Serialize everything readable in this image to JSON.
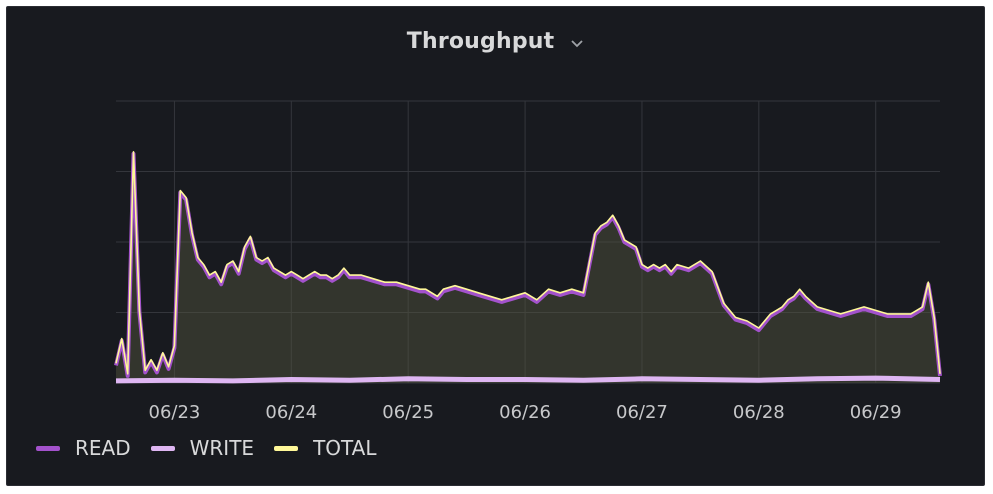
{
  "panel": {
    "title": "Throughput"
  },
  "chart_data": {
    "type": "line",
    "title": "Throughput",
    "xlabel": "",
    "ylabel": "",
    "x_ticks": [
      "06/23",
      "06/24",
      "06/25",
      "06/26",
      "06/27",
      "06/28",
      "06/29"
    ],
    "x_range": [
      "06/22 11:30",
      "06/29 12:30"
    ],
    "y_range": [
      0,
      4
    ],
    "y_tick_labels_shown": false,
    "grid": true,
    "legend": "bottom-left",
    "series": [
      {
        "name": "READ",
        "color": "#a352cc",
        "fill": true,
        "x": [
          -0.5,
          -0.45,
          -0.4,
          -0.35,
          -0.3,
          -0.25,
          -0.2,
          -0.15,
          -0.1,
          -0.05,
          0.0,
          0.05,
          0.1,
          0.15,
          0.2,
          0.25,
          0.3,
          0.35,
          0.4,
          0.45,
          0.5,
          0.55,
          0.6,
          0.65,
          0.7,
          0.75,
          0.8,
          0.85,
          0.9,
          0.95,
          1.0,
          1.05,
          1.1,
          1.15,
          1.2,
          1.25,
          1.3,
          1.35,
          1.4,
          1.45,
          1.5,
          1.6,
          1.7,
          1.8,
          1.9,
          2.0,
          2.1,
          2.15,
          2.2,
          2.25,
          2.3,
          2.4,
          2.5,
          2.6,
          2.7,
          2.8,
          2.9,
          3.0,
          3.1,
          3.2,
          3.3,
          3.4,
          3.5,
          3.6,
          3.65,
          3.7,
          3.75,
          3.8,
          3.85,
          3.9,
          3.95,
          4.0,
          4.05,
          4.1,
          4.15,
          4.2,
          4.25,
          4.3,
          4.4,
          4.5,
          4.6,
          4.7,
          4.8,
          4.9,
          5.0,
          5.1,
          5.15,
          5.2,
          5.25,
          5.3,
          5.35,
          5.4,
          5.5,
          5.6,
          5.7,
          5.8,
          5.9,
          6.0,
          6.1,
          6.2,
          6.3,
          6.4,
          6.45,
          6.5,
          6.55
        ],
        "values": [
          0.25,
          0.6,
          0.1,
          3.25,
          1.0,
          0.15,
          0.3,
          0.15,
          0.4,
          0.2,
          0.5,
          2.7,
          2.6,
          2.1,
          1.75,
          1.65,
          1.5,
          1.55,
          1.4,
          1.65,
          1.7,
          1.55,
          1.9,
          2.05,
          1.75,
          1.7,
          1.75,
          1.6,
          1.55,
          1.5,
          1.55,
          1.5,
          1.45,
          1.5,
          1.55,
          1.5,
          1.5,
          1.45,
          1.5,
          1.6,
          1.5,
          1.5,
          1.45,
          1.4,
          1.4,
          1.35,
          1.3,
          1.3,
          1.25,
          1.2,
          1.3,
          1.35,
          1.3,
          1.25,
          1.2,
          1.15,
          1.2,
          1.25,
          1.15,
          1.3,
          1.25,
          1.3,
          1.25,
          2.1,
          2.2,
          2.25,
          2.35,
          2.2,
          2.0,
          1.95,
          1.9,
          1.65,
          1.6,
          1.65,
          1.6,
          1.65,
          1.55,
          1.65,
          1.6,
          1.7,
          1.55,
          1.1,
          0.9,
          0.85,
          0.75,
          0.95,
          1.0,
          1.05,
          1.15,
          1.2,
          1.3,
          1.2,
          1.05,
          1.0,
          0.95,
          1.0,
          1.05,
          1.0,
          0.95,
          0.95,
          0.95,
          1.05,
          1.4,
          0.9,
          0.1
        ]
      },
      {
        "name": "WRITE",
        "color": "#deb6f2",
        "fill": false,
        "x": [
          -0.5,
          0.0,
          0.5,
          1.0,
          1.5,
          2.0,
          2.5,
          3.0,
          3.5,
          4.0,
          4.5,
          5.0,
          5.5,
          6.0,
          6.55
        ],
        "values": [
          0.03,
          0.04,
          0.03,
          0.05,
          0.04,
          0.06,
          0.05,
          0.05,
          0.04,
          0.06,
          0.05,
          0.04,
          0.06,
          0.07,
          0.05
        ]
      },
      {
        "name": "TOTAL",
        "color": "#fff899",
        "fill": false,
        "x": [
          -0.5,
          -0.45,
          -0.4,
          -0.35,
          -0.3,
          -0.25,
          -0.2,
          -0.15,
          -0.1,
          -0.05,
          0.0,
          0.05,
          0.1,
          0.15,
          0.2,
          0.25,
          0.3,
          0.35,
          0.4,
          0.45,
          0.5,
          0.55,
          0.6,
          0.65,
          0.7,
          0.75,
          0.8,
          0.85,
          0.9,
          0.95,
          1.0,
          1.05,
          1.1,
          1.15,
          1.2,
          1.25,
          1.3,
          1.35,
          1.4,
          1.45,
          1.5,
          1.6,
          1.7,
          1.8,
          1.9,
          2.0,
          2.1,
          2.15,
          2.2,
          2.25,
          2.3,
          2.4,
          2.5,
          2.6,
          2.7,
          2.8,
          2.9,
          3.0,
          3.1,
          3.2,
          3.3,
          3.4,
          3.5,
          3.6,
          3.65,
          3.7,
          3.75,
          3.8,
          3.85,
          3.9,
          3.95,
          4.0,
          4.05,
          4.1,
          4.15,
          4.2,
          4.25,
          4.3,
          4.4,
          4.5,
          4.6,
          4.7,
          4.8,
          4.9,
          5.0,
          5.1,
          5.15,
          5.2,
          5.25,
          5.3,
          5.35,
          5.4,
          5.5,
          5.6,
          5.7,
          5.8,
          5.9,
          6.0,
          6.1,
          6.2,
          6.3,
          6.4,
          6.45,
          6.5,
          6.55
        ],
        "values": [
          0.28,
          0.63,
          0.13,
          3.28,
          1.03,
          0.18,
          0.33,
          0.18,
          0.43,
          0.23,
          0.53,
          2.73,
          2.63,
          2.13,
          1.78,
          1.68,
          1.53,
          1.58,
          1.43,
          1.68,
          1.73,
          1.58,
          1.93,
          2.08,
          1.78,
          1.73,
          1.78,
          1.63,
          1.58,
          1.53,
          1.58,
          1.53,
          1.48,
          1.53,
          1.58,
          1.53,
          1.53,
          1.48,
          1.53,
          1.63,
          1.53,
          1.53,
          1.48,
          1.43,
          1.43,
          1.38,
          1.33,
          1.33,
          1.28,
          1.23,
          1.33,
          1.38,
          1.33,
          1.28,
          1.23,
          1.18,
          1.23,
          1.28,
          1.18,
          1.33,
          1.28,
          1.33,
          1.28,
          2.13,
          2.23,
          2.28,
          2.38,
          2.23,
          2.03,
          1.98,
          1.93,
          1.68,
          1.63,
          1.68,
          1.63,
          1.68,
          1.58,
          1.68,
          1.63,
          1.73,
          1.58,
          1.13,
          0.93,
          0.88,
          0.78,
          0.98,
          1.03,
          1.08,
          1.18,
          1.23,
          1.33,
          1.23,
          1.08,
          1.03,
          0.98,
          1.03,
          1.08,
          1.03,
          0.98,
          0.98,
          0.98,
          1.08,
          1.43,
          0.93,
          0.13
        ]
      }
    ]
  }
}
